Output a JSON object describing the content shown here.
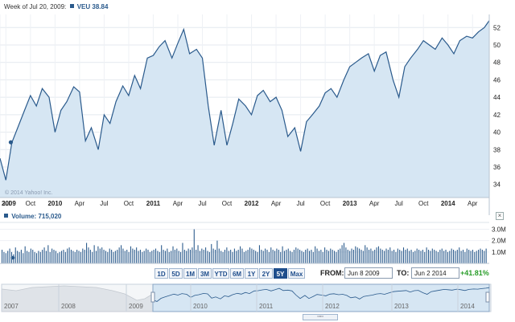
{
  "header": {
    "week_label": "Week of Jul 20, 2009:",
    "ticker": "VEU",
    "value": "38.84"
  },
  "watermark": "© 2014 Yahoo! Inc.",
  "volume": {
    "label": "Volume:",
    "value": "715,020"
  },
  "range_buttons": [
    {
      "label": "1D",
      "active": false
    },
    {
      "label": "5D",
      "active": false
    },
    {
      "label": "1M",
      "active": false
    },
    {
      "label": "3M",
      "active": false
    },
    {
      "label": "YTD",
      "active": false
    },
    {
      "label": "6M",
      "active": false
    },
    {
      "label": "1Y",
      "active": false
    },
    {
      "label": "2Y",
      "active": false
    },
    {
      "label": "5Y",
      "active": true
    },
    {
      "label": "Max",
      "active": false
    }
  ],
  "from": {
    "label": "FROM:",
    "value": "Jun 8 2009"
  },
  "to": {
    "label": "TO:",
    "value": "Jun 2 2014"
  },
  "change": "+41.81%",
  "navigator_years": [
    "2007",
    "2008",
    "2009",
    "2010",
    "2011",
    "2012",
    "2013",
    "2014"
  ],
  "scroll_handle_label": "▫▫▫",
  "colors": {
    "line": "#2a5a8c",
    "area": "#d6e6f3",
    "volume_bar": "#2a5a8c",
    "positive": "#2a9d2a"
  },
  "chart_data": [
    {
      "type": "area",
      "series": [
        {
          "name": "VEU",
          "x": [
            2009.44,
            2009.5,
            2009.56,
            2009.62,
            2009.69,
            2009.75,
            2009.81,
            2009.87,
            2009.94,
            2010.0,
            2010.06,
            2010.12,
            2010.19,
            2010.25,
            2010.31,
            2010.37,
            2010.44,
            2010.5,
            2010.56,
            2010.62,
            2010.69,
            2010.75,
            2010.81,
            2010.87,
            2010.94,
            2011.0,
            2011.06,
            2011.12,
            2011.19,
            2011.25,
            2011.31,
            2011.37,
            2011.44,
            2011.5,
            2011.56,
            2011.62,
            2011.69,
            2011.75,
            2011.81,
            2011.87,
            2011.94,
            2012.0,
            2012.06,
            2012.12,
            2012.19,
            2012.25,
            2012.31,
            2012.37,
            2012.44,
            2012.5,
            2012.56,
            2012.62,
            2012.69,
            2012.75,
            2012.81,
            2012.87,
            2012.94,
            2013.0,
            2013.06,
            2013.12,
            2013.19,
            2013.25,
            2013.31,
            2013.37,
            2013.44,
            2013.5,
            2013.56,
            2013.62,
            2013.69,
            2013.75,
            2013.81,
            2013.87,
            2013.94,
            2014.0,
            2014.06,
            2014.12,
            2014.19,
            2014.25,
            2014.31,
            2014.37,
            2014.42
          ],
          "values": [
            37.0,
            34.5,
            38.8,
            40.5,
            42.5,
            44.2,
            43.0,
            45.0,
            44.0,
            40.0,
            42.5,
            43.5,
            45.2,
            44.6,
            39.0,
            40.5,
            38.0,
            42.0,
            41.0,
            43.5,
            45.3,
            44.2,
            46.5,
            45.0,
            48.5,
            48.8,
            49.8,
            50.5,
            48.5,
            50.2,
            51.8,
            49.0,
            49.5,
            48.5,
            43.0,
            38.5,
            42.5,
            38.5,
            41.0,
            43.8,
            43.0,
            42.0,
            44.2,
            44.8,
            43.5,
            44.0,
            42.5,
            39.5,
            40.5,
            37.8,
            41.2,
            42.0,
            43.0,
            44.5,
            45.0,
            44.0,
            46.0,
            47.5,
            48.0,
            48.5,
            49.0,
            47.0,
            48.8,
            49.2,
            46.0,
            44.0,
            47.5,
            48.5,
            49.5,
            50.5,
            50.0,
            49.5,
            50.8,
            50.0,
            49.0,
            50.5,
            51.0,
            50.8,
            51.5,
            52.0,
            52.8
          ]
        }
      ],
      "ylim": [
        32.5,
        53.5
      ],
      "y_ticks": [
        34,
        36,
        38,
        40,
        42,
        44,
        46,
        48,
        50,
        52
      ],
      "x_ticks": [
        {
          "label": "2009",
          "bold": true
        },
        {
          "label": "Jul",
          "bold": false
        },
        {
          "label": "Oct",
          "bold": false
        },
        {
          "label": "2010",
          "bold": true
        },
        {
          "label": "Apr",
          "bold": false
        },
        {
          "label": "Jul",
          "bold": false
        },
        {
          "label": "Oct",
          "bold": false
        },
        {
          "label": "2011",
          "bold": true
        },
        {
          "label": "Apr",
          "bold": false
        },
        {
          "label": "Jul",
          "bold": false
        },
        {
          "label": "Oct",
          "bold": false
        },
        {
          "label": "2012",
          "bold": true
        },
        {
          "label": "Apr",
          "bold": false
        },
        {
          "label": "Jul",
          "bold": false
        },
        {
          "label": "Oct",
          "bold": false
        },
        {
          "label": "2013",
          "bold": true
        },
        {
          "label": "Apr",
          "bold": false
        },
        {
          "label": "Jul",
          "bold": false
        },
        {
          "label": "Oct",
          "bold": false
        },
        {
          "label": "2014",
          "bold": true
        },
        {
          "label": "Apr",
          "bold": false
        }
      ],
      "x_tick_values": [
        2009.44,
        2009.5,
        2009.75,
        2010.0,
        2010.25,
        2010.5,
        2010.75,
        2011.0,
        2011.25,
        2011.5,
        2011.75,
        2012.0,
        2012.25,
        2012.5,
        2012.75,
        2013.0,
        2013.25,
        2013.5,
        2013.75,
        2014.0,
        2014.25
      ],
      "highlight": {
        "x": 2009.55,
        "y": 38.84
      },
      "grid": true
    },
    {
      "type": "bar",
      "series": [
        {
          "name": "Volume",
          "values": [
            1.2,
            1.0,
            0.9,
            1.1,
            1.3,
            1.0,
            0.8,
            1.4,
            1.1,
            1.0,
            1.2,
            0.9,
            1.5,
            1.1,
            1.0,
            1.3,
            1.2,
            1.0,
            0.9,
            1.1,
            1.0,
            1.2,
            1.4,
            1.1,
            1.6,
            1.0,
            1.3,
            1.2,
            1.1,
            0.9,
            1.0,
            1.1,
            1.2,
            1.0,
            1.3,
            1.4,
            1.2,
            1.1,
            1.0,
            1.2,
            1.1,
            1.0,
            1.3,
            1.2,
            1.8,
            1.4,
            1.2,
            1.0,
            1.6,
            1.1,
            1.5,
            1.3,
            1.4,
            1.2,
            1.1,
            1.0,
            1.3,
            1.2,
            1.0,
            1.1,
            1.2,
            1.4,
            1.6,
            1.3,
            1.1,
            1.2,
            1.0,
            1.5,
            1.3,
            1.2,
            1.4,
            1.1,
            1.2,
            1.0,
            1.1,
            1.3,
            1.2,
            1.0,
            1.1,
            1.2,
            1.3,
            1.1,
            1.0,
            1.6,
            1.2,
            1.1,
            1.3,
            1.0,
            1.1,
            1.5,
            1.2,
            1.3,
            1.1,
            1.0,
            1.8,
            1.2,
            1.1,
            1.3,
            1.2,
            1.4,
            3.0,
            1.2,
            1.6,
            1.1,
            1.3,
            1.2,
            1.4,
            1.1,
            1.0,
            1.7,
            1.3,
            1.2,
            2.0,
            1.3,
            1.1,
            1.0,
            1.2,
            1.4,
            1.1,
            1.2,
            1.0,
            1.3,
            1.1,
            1.2,
            1.5,
            1.3,
            1.0,
            1.1,
            1.2,
            1.4,
            1.3,
            1.2,
            1.1,
            1.0,
            1.6,
            1.2,
            1.1,
            1.3,
            1.2,
            1.0,
            1.4,
            1.2,
            1.1,
            1.3,
            1.2,
            1.0,
            1.5,
            1.1,
            1.2,
            1.3,
            1.1,
            1.0,
            1.2,
            1.4,
            1.3,
            1.2,
            1.1,
            1.0,
            1.2,
            1.3,
            1.1,
            1.2,
            1.0,
            1.5,
            1.3,
            1.1,
            1.2,
            1.0,
            1.4,
            1.2,
            1.1,
            1.3,
            1.2,
            1.1,
            1.0,
            1.2,
            1.3,
            1.6,
            1.8,
            1.4,
            1.2,
            1.1,
            1.3,
            1.2,
            1.5,
            1.4,
            1.3,
            1.2,
            1.1,
            1.6,
            1.4,
            1.2,
            1.3,
            1.1,
            1.2,
            1.4,
            1.5,
            1.3,
            1.2,
            1.1,
            1.3,
            1.2,
            1.4,
            1.1,
            1.2,
            1.0,
            1.3,
            1.2,
            1.1,
            1.4,
            1.2,
            1.3,
            1.1,
            1.2,
            1.0,
            1.1,
            1.3,
            1.2,
            1.1,
            1.2,
            1.0,
            1.4,
            1.2,
            1.1,
            1.3,
            1.2,
            1.1,
            1.0,
            1.2,
            1.3,
            1.1,
            1.2,
            1.0,
            1.1,
            1.3,
            1.2,
            1.1,
            1.2,
            1.4,
            1.1,
            1.2,
            1.0,
            1.3,
            1.2,
            1.1,
            1.2,
            1.0,
            1.1,
            1.2,
            1.3,
            1.2,
            1.1,
            1.3
          ]
        }
      ],
      "ylim": [
        0,
        3.6
      ],
      "y_ticks": [
        {
          "value": 1,
          "label": "1.0M"
        },
        {
          "value": 2,
          "label": "2.0M"
        },
        {
          "value": 3,
          "label": "3.0M"
        }
      ]
    }
  ]
}
